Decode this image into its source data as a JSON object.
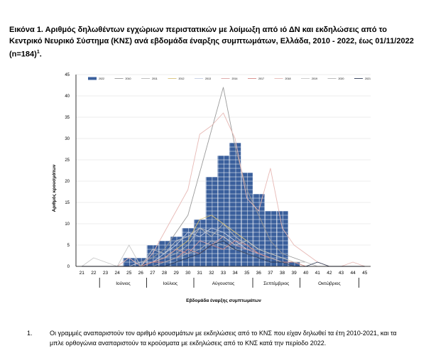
{
  "caption": {
    "main": "Εικόνα 1. Αριθμός δηλωθέντων εγχώριων περιστατικών με λοίμωξη από ιό ΔΝ και εκδηλώσεις από το Κεντρικό Νευρικό Σύστημα (ΚΝΣ) ανά εβδομάδα έναρξης συμπτωμάτων, Ελλάδα, 2010 - 2022, έως 01/11/2022 (n=184)",
    "superscript": "1",
    "end": "."
  },
  "footnote": {
    "number": "1.",
    "text": "Οι γραμμές αναπαριστούν τον αριθμό κρουσμάτων με εκδηλώσεις από το ΚΝΣ που είχαν δηλωθεί τα έτη 2010-2021, και τα μπλε ορθογώνια αναπαριστούν τα κρούσματα με εκδηλώσεις από το ΚΝΣ κατά την περίοδο 2022."
  },
  "chart_data": {
    "type": "bar",
    "xlabel": "Εβδομάδα έναρξης συμπτωμάτων",
    "ylabel": "Αριθμός κρουσμάτων",
    "ylim": [
      0,
      45
    ],
    "yticks": [
      0,
      5,
      10,
      15,
      20,
      25,
      30,
      35,
      40,
      45
    ],
    "categories": [
      "21",
      "22",
      "23",
      "24",
      "25",
      "26",
      "27",
      "28",
      "29",
      "30",
      "31",
      "32",
      "33",
      "34",
      "35",
      "36",
      "37",
      "38",
      "39",
      "40",
      "41",
      "42",
      "43",
      "44",
      "45"
    ],
    "months": [
      {
        "label": "Ιούνιος",
        "from": "23",
        "to": "26"
      },
      {
        "label": "Ιούλιος",
        "from": "27",
        "to": "30"
      },
      {
        "label": "Αύγουστος",
        "from": "31",
        "to": "35"
      },
      {
        "label": "Σεπτέμβριος",
        "from": "36",
        "to": "39"
      },
      {
        "label": "Οκτώβριος",
        "from": "40",
        "to": "44"
      }
    ],
    "legend_position": "top",
    "bars": {
      "name": "2022",
      "color": "#3a5f9c",
      "values": [
        0,
        0,
        0,
        0,
        2,
        2,
        5,
        6,
        7,
        9,
        11,
        21,
        26,
        29,
        22,
        17,
        13,
        13,
        1,
        0,
        0,
        0,
        0,
        0,
        0
      ]
    },
    "series": [
      {
        "name": "2010",
        "color": "#9a9a9a",
        "values": [
          0,
          0,
          0,
          0,
          0,
          1,
          2,
          4,
          8,
          12,
          22,
          32,
          42,
          28,
          18,
          12,
          6,
          3,
          2,
          1,
          0,
          0,
          0,
          0,
          0
        ]
      },
      {
        "name": "2011",
        "color": "#b8b8b8",
        "values": [
          0,
          0,
          0,
          0,
          0,
          0,
          1,
          2,
          3,
          5,
          9,
          7,
          10,
          7,
          5,
          3,
          2,
          1,
          1,
          0,
          0,
          0,
          0,
          0,
          0
        ]
      },
      {
        "name": "2012",
        "color": "#d9c27a",
        "values": [
          0,
          0,
          0,
          0,
          0,
          0,
          1,
          2,
          4,
          6,
          11,
          12,
          10,
          8,
          6,
          4,
          3,
          2,
          1,
          0,
          0,
          0,
          0,
          0,
          0
        ]
      },
      {
        "name": "2013",
        "color": "#c6cfe3",
        "values": [
          0,
          0,
          0,
          0,
          0,
          1,
          1,
          3,
          5,
          8,
          7,
          9,
          8,
          6,
          4,
          3,
          2,
          1,
          1,
          0,
          0,
          0,
          0,
          0,
          0
        ]
      },
      {
        "name": "2014",
        "color": "#dda4a4",
        "values": [
          0,
          0,
          0,
          0,
          0,
          0,
          1,
          2,
          4,
          3,
          6,
          5,
          7,
          5,
          4,
          3,
          2,
          1,
          0,
          0,
          0,
          0,
          0,
          0,
          0
        ]
      },
      {
        "name": "2017",
        "color": "#d78a86",
        "values": [
          0,
          0,
          0,
          0,
          0,
          0,
          1,
          1,
          2,
          4,
          3,
          5,
          4,
          6,
          5,
          3,
          2,
          1,
          1,
          0,
          0,
          0,
          0,
          0,
          0
        ]
      },
      {
        "name": "2018",
        "color": "#e7b9b5",
        "values": [
          0,
          0,
          0,
          0,
          2,
          0,
          3,
          8,
          13,
          18,
          31,
          33,
          36,
          30,
          16,
          13,
          23,
          9,
          5,
          3,
          1,
          0,
          0,
          1,
          0
        ]
      },
      {
        "name": "2019",
        "color": "#c9c9c9",
        "values": [
          0,
          2,
          1,
          0,
          5,
          0,
          4,
          3,
          6,
          7,
          9,
          8,
          7,
          5,
          6,
          4,
          3,
          2,
          1,
          1,
          0,
          0,
          0,
          0,
          0
        ]
      },
      {
        "name": "2020",
        "color": "#b5b5b5",
        "values": [
          0,
          0,
          0,
          0,
          0,
          0,
          0,
          1,
          2,
          3,
          4,
          6,
          5,
          4,
          3,
          2,
          2,
          1,
          0,
          0,
          0,
          0,
          0,
          0,
          0
        ]
      },
      {
        "name": "2021",
        "color": "#2e3b55",
        "values": [
          0,
          0,
          0,
          0,
          0,
          0,
          0,
          0,
          1,
          2,
          3,
          5,
          6,
          4,
          3,
          2,
          1,
          1,
          0,
          0,
          1,
          0,
          0,
          0,
          0
        ]
      }
    ]
  }
}
